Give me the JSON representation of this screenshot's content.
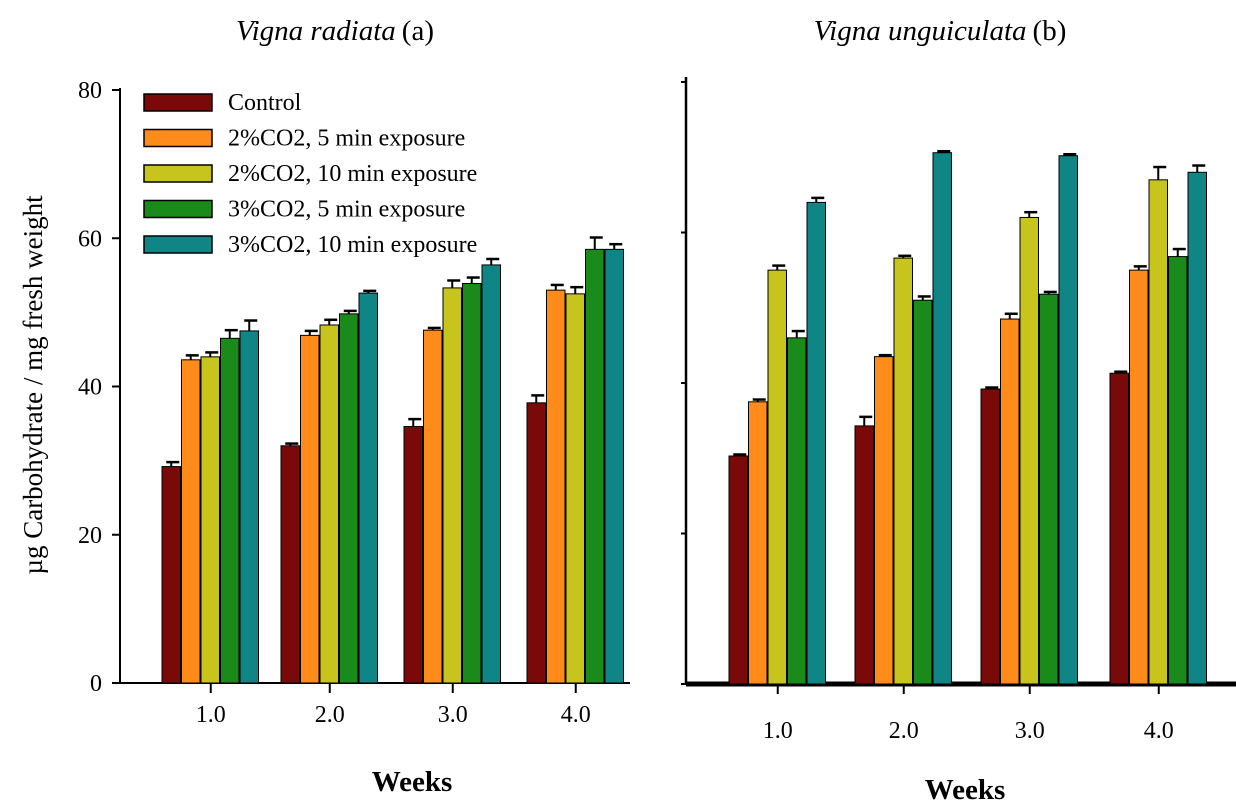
{
  "chart_data": [
    {
      "type": "bar",
      "title": "Vigna radiata",
      "title_suffix": "(a)",
      "xlabel": "Weeks",
      "ylabel": "µg Carbohydrate / mg fresh weight",
      "categories": [
        "1.0",
        "2.0",
        "3.0",
        "4.0"
      ],
      "ylim": [
        0,
        80
      ],
      "yticks": [
        "0",
        "20",
        "40",
        "60",
        "80"
      ],
      "legend_position": "top-left",
      "series": [
        {
          "name": "Control",
          "color": "#7a0a0a",
          "values": [
            29.2,
            32.0,
            34.6,
            37.8
          ],
          "errors": [
            0.6,
            0.3,
            1.0,
            1.0
          ]
        },
        {
          "name": "2%CO2, 5 min exposure",
          "color": "#ff8c1a",
          "values": [
            43.6,
            46.9,
            47.6,
            53.0
          ],
          "errors": [
            0.6,
            0.6,
            0.3,
            0.7
          ]
        },
        {
          "name": "2%CO2, 10 min exposure",
          "color": "#c7c41e",
          "values": [
            44.0,
            48.3,
            53.3,
            52.5
          ],
          "errors": [
            0.6,
            0.7,
            1.0,
            0.9
          ]
        },
        {
          "name": "3%CO2, 5 min exposure",
          "color": "#1a8a1a",
          "values": [
            46.5,
            49.8,
            53.9,
            58.5
          ],
          "errors": [
            1.1,
            0.4,
            0.8,
            1.6
          ]
        },
        {
          "name": "3%CO2, 10 min exposure",
          "color": "#0f8585",
          "values": [
            47.5,
            52.6,
            56.4,
            58.5
          ],
          "errors": [
            1.4,
            0.3,
            0.8,
            0.7
          ]
        }
      ]
    },
    {
      "type": "bar",
      "title": "Vigna unguiculata",
      "title_suffix": "(b)",
      "xlabel": "Weeks",
      "categories": [
        "1.0",
        "2.0",
        "3.0",
        "4.0"
      ],
      "ylim": [
        0,
        80
      ],
      "legend_position": "none",
      "series": [
        {
          "name": "Control",
          "color": "#7a0a0a",
          "values": [
            30.3,
            34.3,
            39.2,
            41.3
          ],
          "errors": [
            0.2,
            1.2,
            0.2,
            0.2
          ]
        },
        {
          "name": "2%CO2, 5 min exposure",
          "color": "#ff8c1a",
          "values": [
            37.5,
            43.5,
            48.5,
            55.0
          ],
          "errors": [
            0.3,
            0.2,
            0.7,
            0.5
          ]
        },
        {
          "name": "2%CO2, 10 min exposure",
          "color": "#c7c41e",
          "values": [
            55.0,
            56.6,
            62.0,
            67.0
          ],
          "errors": [
            0.6,
            0.3,
            0.7,
            1.7
          ]
        },
        {
          "name": "3%CO2, 5 min exposure",
          "color": "#1a8a1a",
          "values": [
            46.0,
            51.0,
            51.8,
            56.8
          ],
          "errors": [
            0.9,
            0.5,
            0.3,
            1.0
          ]
        },
        {
          "name": "3%CO2, 10 min exposure",
          "color": "#0f8585",
          "values": [
            64.0,
            70.6,
            70.2,
            68.0
          ],
          "errors": [
            0.6,
            0.2,
            0.2,
            0.9
          ]
        }
      ]
    }
  ]
}
